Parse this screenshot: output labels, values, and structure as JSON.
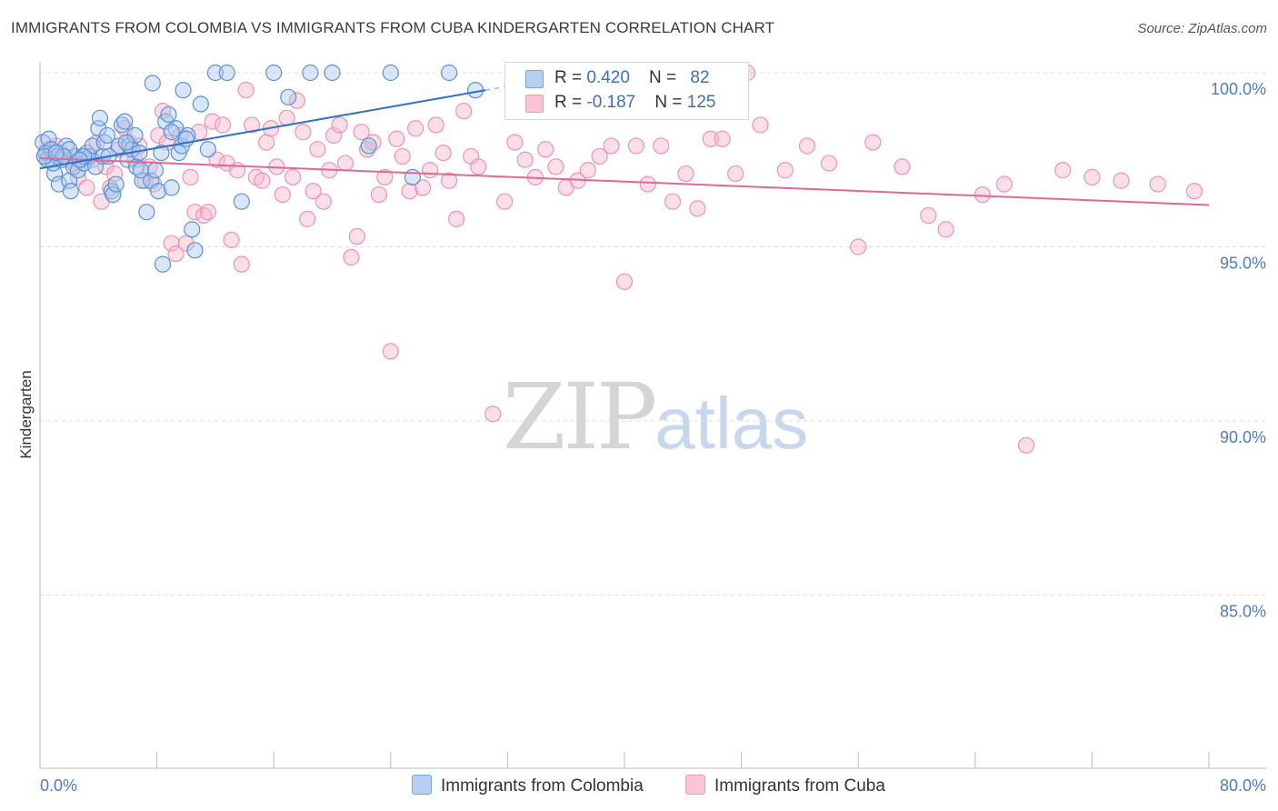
{
  "title": "IMMIGRANTS FROM COLOMBIA VS IMMIGRANTS FROM CUBA KINDERGARTEN CORRELATION CHART",
  "source": "Source: ZipAtlas.com",
  "watermark": {
    "zip": "ZIP",
    "atlas": "atlas"
  },
  "legend": {
    "colombia": {
      "r_label": "R = ",
      "r_value": "0.420",
      "n_label": "N = ",
      "n_value": "82"
    },
    "cuba": {
      "r_label": "R = ",
      "r_value": "-0.187",
      "n_label": "N = ",
      "n_value": "125"
    }
  },
  "bottom_legend": {
    "colombia": "Immigrants from Colombia",
    "cuba": "Immigrants from Cuba"
  },
  "chart_data": {
    "type": "scatter",
    "title": "IMMIGRANTS FROM COLOMBIA VS IMMIGRANTS FROM CUBA KINDERGARTEN CORRELATION CHART",
    "xlabel": "",
    "ylabel": "Kindergarten",
    "xlim": [
      0,
      80
    ],
    "ylim": [
      80,
      100.5
    ],
    "x_tick_labels": [
      "0.0%",
      "80.0%"
    ],
    "y_ticks": [
      100,
      95,
      90,
      85
    ],
    "y_tick_labels": [
      "100.0%",
      "95.0%",
      "90.0%",
      "85.0%"
    ],
    "colors": {
      "colombia_fill": "#a9c8ee",
      "colombia_line": "#2d6fcc",
      "cuba_fill": "#f7b9cc",
      "cuba_line": "#e0698f"
    },
    "series": [
      {
        "name": "Immigrants from Colombia",
        "trend": {
          "x": [
            0,
            30.5
          ],
          "y": [
            97.25,
            99.5
          ]
        },
        "points": [
          [
            0.2,
            98.0
          ],
          [
            0.4,
            97.7
          ],
          [
            0.5,
            97.5
          ],
          [
            0.6,
            98.1
          ],
          [
            0.8,
            97.8
          ],
          [
            1.0,
            97.1
          ],
          [
            1.2,
            97.6
          ],
          [
            1.3,
            96.8
          ],
          [
            1.5,
            97.5
          ],
          [
            1.8,
            97.9
          ],
          [
            2.0,
            96.9
          ],
          [
            2.1,
            96.6
          ],
          [
            2.3,
            97.3
          ],
          [
            2.4,
            97.6
          ],
          [
            2.6,
            97.2
          ],
          [
            2.8,
            97.5
          ],
          [
            3.0,
            97.4
          ],
          [
            3.2,
            97.7
          ],
          [
            3.4,
            97.6
          ],
          [
            3.6,
            97.9
          ],
          [
            3.8,
            97.3
          ],
          [
            4.0,
            98.4
          ],
          [
            4.1,
            98.7
          ],
          [
            4.3,
            97.6
          ],
          [
            4.4,
            98.0
          ],
          [
            4.6,
            98.2
          ],
          [
            4.9,
            96.6
          ],
          [
            5.0,
            96.5
          ],
          [
            5.2,
            96.8
          ],
          [
            5.4,
            97.9
          ],
          [
            5.6,
            98.5
          ],
          [
            5.8,
            98.6
          ],
          [
            6.0,
            97.5
          ],
          [
            6.1,
            97.9
          ],
          [
            6.3,
            97.8
          ],
          [
            6.5,
            98.2
          ],
          [
            6.6,
            97.3
          ],
          [
            6.8,
            97.7
          ],
          [
            7.0,
            96.9
          ],
          [
            7.3,
            96.0
          ],
          [
            7.6,
            96.9
          ],
          [
            7.9,
            97.2
          ],
          [
            8.1,
            96.6
          ],
          [
            8.4,
            94.5
          ],
          [
            8.6,
            98.6
          ],
          [
            8.8,
            98.8
          ],
          [
            9.0,
            96.7
          ],
          [
            9.3,
            98.4
          ],
          [
            9.5,
            97.7
          ],
          [
            9.7,
            97.9
          ],
          [
            9.8,
            99.5
          ],
          [
            10.1,
            98.2
          ],
          [
            10.4,
            95.5
          ],
          [
            10.6,
            94.9
          ],
          [
            11.0,
            99.1
          ],
          [
            11.5,
            97.8
          ],
          [
            12.0,
            100.0
          ],
          [
            12.8,
            100.0
          ],
          [
            13.8,
            96.3
          ],
          [
            16.0,
            100.0
          ],
          [
            17.0,
            99.3
          ],
          [
            18.5,
            100.0
          ],
          [
            20.0,
            100.0
          ],
          [
            22.5,
            97.9
          ],
          [
            24.0,
            100.0
          ],
          [
            25.5,
            97.0
          ],
          [
            28.0,
            100.0
          ],
          [
            29.8,
            99.5
          ],
          [
            7.7,
            99.7
          ],
          [
            9.0,
            98.3
          ],
          [
            10.0,
            98.1
          ],
          [
            3.0,
            97.6
          ],
          [
            2.0,
            97.8
          ],
          [
            0.9,
            97.4
          ],
          [
            4.7,
            97.6
          ],
          [
            6.9,
            97.2
          ],
          [
            1.6,
            97.6
          ],
          [
            5.9,
            98.0
          ],
          [
            8.3,
            97.7
          ],
          [
            0.3,
            97.6
          ],
          [
            1.1,
            97.7
          ],
          [
            2.7,
            97.5
          ]
        ]
      },
      {
        "name": "Immigrants from Cuba",
        "trend": {
          "x": [
            0,
            80
          ],
          "y": [
            97.55,
            96.2
          ]
        },
        "points": [
          [
            0.3,
            97.6
          ],
          [
            0.6,
            97.8
          ],
          [
            0.9,
            97.5
          ],
          [
            1.1,
            97.9
          ],
          [
            1.4,
            97.7
          ],
          [
            1.7,
            97.6
          ],
          [
            2.0,
            97.5
          ],
          [
            2.3,
            97.4
          ],
          [
            2.6,
            97.0
          ],
          [
            2.9,
            97.6
          ],
          [
            3.2,
            96.7
          ],
          [
            3.6,
            97.5
          ],
          [
            3.9,
            98.0
          ],
          [
            4.2,
            96.3
          ],
          [
            4.5,
            97.3
          ],
          [
            4.8,
            96.7
          ],
          [
            5.1,
            97.1
          ],
          [
            5.4,
            97.8
          ],
          [
            5.8,
            98.4
          ],
          [
            6.1,
            98.0
          ],
          [
            6.5,
            97.5
          ],
          [
            6.8,
            97.9
          ],
          [
            7.2,
            96.9
          ],
          [
            7.5,
            97.3
          ],
          [
            7.8,
            96.8
          ],
          [
            8.1,
            98.2
          ],
          [
            8.4,
            98.9
          ],
          [
            8.7,
            98.0
          ],
          [
            9.0,
            95.1
          ],
          [
            9.3,
            94.8
          ],
          [
            9.6,
            98.2
          ],
          [
            10.0,
            95.1
          ],
          [
            10.3,
            97.0
          ],
          [
            10.6,
            96.0
          ],
          [
            10.9,
            98.3
          ],
          [
            11.2,
            95.9
          ],
          [
            11.5,
            96.0
          ],
          [
            11.8,
            98.6
          ],
          [
            12.1,
            97.5
          ],
          [
            12.5,
            98.5
          ],
          [
            12.8,
            97.4
          ],
          [
            13.1,
            95.2
          ],
          [
            13.5,
            97.2
          ],
          [
            13.8,
            94.5
          ],
          [
            14.1,
            99.5
          ],
          [
            14.5,
            98.5
          ],
          [
            14.8,
            97.0
          ],
          [
            15.2,
            96.9
          ],
          [
            15.5,
            98.0
          ],
          [
            15.8,
            98.4
          ],
          [
            16.2,
            97.3
          ],
          [
            16.6,
            96.5
          ],
          [
            16.9,
            98.7
          ],
          [
            17.3,
            97.0
          ],
          [
            17.6,
            99.2
          ],
          [
            18.0,
            98.3
          ],
          [
            18.3,
            95.8
          ],
          [
            18.7,
            96.6
          ],
          [
            19.0,
            97.8
          ],
          [
            19.4,
            96.3
          ],
          [
            19.8,
            97.2
          ],
          [
            20.1,
            98.2
          ],
          [
            20.5,
            98.5
          ],
          [
            20.9,
            97.4
          ],
          [
            21.3,
            94.7
          ],
          [
            21.7,
            95.3
          ],
          [
            22.0,
            98.3
          ],
          [
            22.4,
            97.8
          ],
          [
            22.8,
            98.0
          ],
          [
            23.2,
            96.5
          ],
          [
            23.6,
            97.0
          ],
          [
            24.0,
            92.0
          ],
          [
            24.4,
            98.1
          ],
          [
            24.8,
            97.6
          ],
          [
            25.3,
            96.6
          ],
          [
            25.7,
            98.4
          ],
          [
            26.2,
            96.7
          ],
          [
            26.7,
            97.2
          ],
          [
            27.1,
            98.5
          ],
          [
            27.6,
            97.7
          ],
          [
            28.0,
            96.9
          ],
          [
            28.5,
            95.8
          ],
          [
            29.0,
            98.9
          ],
          [
            29.5,
            97.6
          ],
          [
            30.0,
            97.3
          ],
          [
            31.0,
            90.2
          ],
          [
            31.8,
            96.3
          ],
          [
            32.5,
            98.0
          ],
          [
            33.2,
            97.5
          ],
          [
            33.9,
            97.0
          ],
          [
            34.6,
            97.8
          ],
          [
            35.3,
            97.3
          ],
          [
            36.0,
            96.7
          ],
          [
            36.8,
            96.9
          ],
          [
            37.5,
            97.2
          ],
          [
            38.3,
            97.6
          ],
          [
            39.1,
            97.9
          ],
          [
            40.0,
            94.0
          ],
          [
            40.8,
            97.9
          ],
          [
            41.6,
            96.8
          ],
          [
            42.5,
            97.9
          ],
          [
            43.3,
            96.3
          ],
          [
            44.2,
            97.1
          ],
          [
            45.0,
            96.1
          ],
          [
            45.9,
            98.1
          ],
          [
            46.7,
            98.1
          ],
          [
            47.6,
            97.1
          ],
          [
            48.4,
            100.0
          ],
          [
            49.3,
            98.5
          ],
          [
            51.0,
            97.2
          ],
          [
            52.5,
            97.9
          ],
          [
            54.0,
            97.4
          ],
          [
            56.0,
            95.0
          ],
          [
            57.0,
            98.0
          ],
          [
            59.0,
            97.3
          ],
          [
            60.8,
            95.9
          ],
          [
            62.0,
            95.5
          ],
          [
            64.5,
            96.5
          ],
          [
            66.0,
            96.8
          ],
          [
            67.5,
            89.3
          ],
          [
            70.0,
            97.2
          ],
          [
            72.0,
            97.0
          ],
          [
            74.0,
            96.9
          ],
          [
            76.5,
            96.8
          ],
          [
            79.0,
            96.6
          ]
        ]
      }
    ]
  }
}
